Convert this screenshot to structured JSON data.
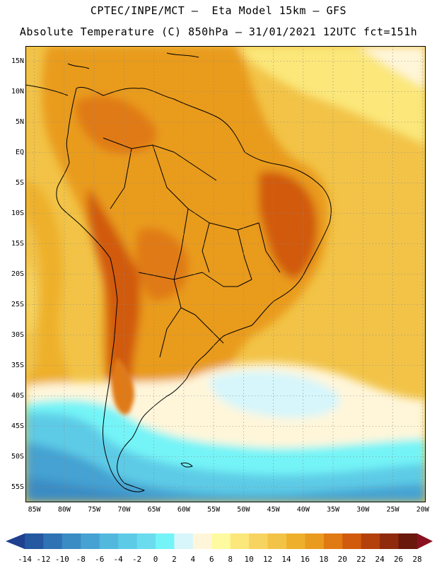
{
  "title_line1": "CPTEC/INPE/MCT –  Eta Model 15km – GFS",
  "title_line2": "Absolute Temperature (C) 850hPa – 31/01/2021 12UTC fct=151h",
  "lat_labels": [
    "15N",
    "10N",
    "5N",
    "EQ",
    "5S",
    "10S",
    "15S",
    "20S",
    "25S",
    "30S",
    "35S",
    "40S",
    "45S",
    "50S",
    "55S"
  ],
  "lon_labels": [
    "85W",
    "80W",
    "75W",
    "70W",
    "65W",
    "60W",
    "55W",
    "50W",
    "45W",
    "40W",
    "35W",
    "30W",
    "25W",
    "20W"
  ],
  "colorbar": {
    "tick_labels": [
      "-14",
      "-12",
      "-10",
      "-8",
      "-6",
      "-4",
      "-2",
      "0",
      "2",
      "4",
      "6",
      "8",
      "10",
      "12",
      "14",
      "16",
      "18",
      "20",
      "22",
      "24",
      "26",
      "28"
    ],
    "colors": [
      "#1f3f8f",
      "#2458a0",
      "#2f73b4",
      "#3a8cc4",
      "#45a2d2",
      "#52b8de",
      "#5dcbe6",
      "#6bdced",
      "#74f4f7",
      "#d6f6fb",
      "#fff6da",
      "#fefaa0",
      "#fbe77a",
      "#f7d45f",
      "#f2c347",
      "#eeb02c",
      "#e99b1f",
      "#e07a12",
      "#d15a0d",
      "#b4400b",
      "#8f2a0c",
      "#6a180c",
      "#8a1020"
    ]
  }
}
